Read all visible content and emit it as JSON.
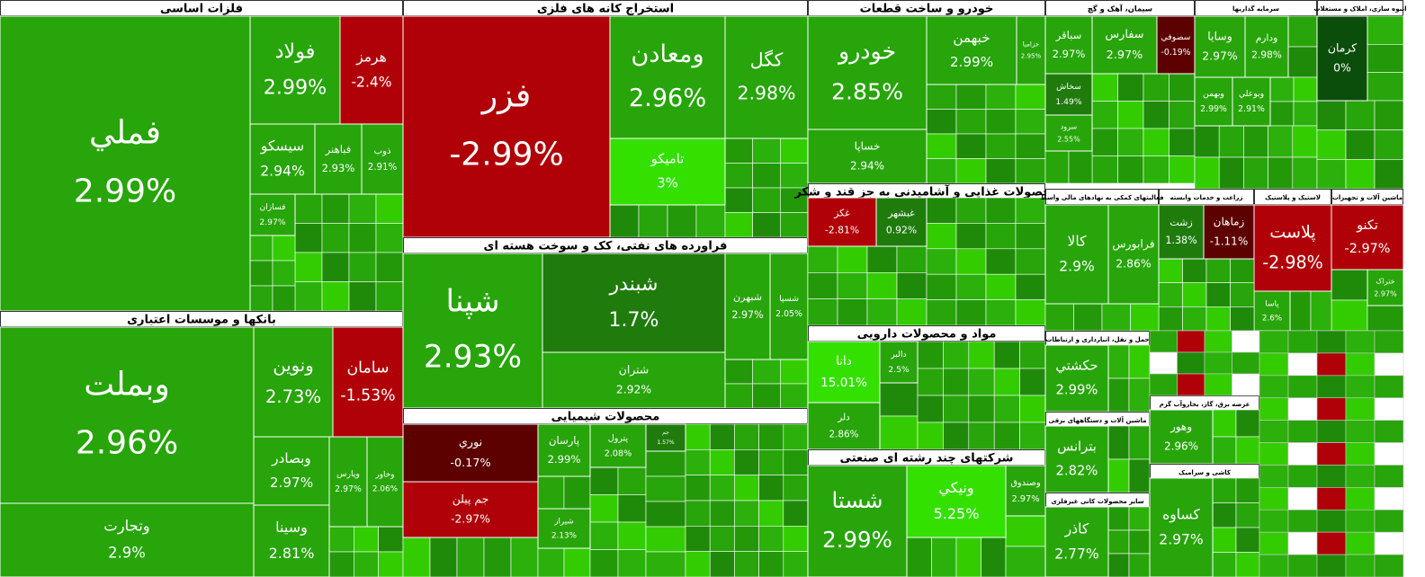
{
  "chart_data": {
    "type": "treemap",
    "sectors": [
      {
        "name": "فلزات اساسی",
        "labels": [
          "فملي",
          "فولاد",
          "هرمز",
          "سيسكو",
          "فباهنر",
          "ذوب",
          "فسازان"
        ],
        "values": [
          2.99,
          2.99,
          -2.4,
          2.94,
          2.93,
          2.91,
          2.97
        ],
        "value_labels": [
          "2.99%",
          "2.99%",
          "-2.4%",
          "2.94%",
          "2.93%",
          "2.91%",
          "2.97%"
        ]
      },
      {
        "name": "بانکها و موسسات اعتباری",
        "labels": [
          "وبملت",
          "وتجارت",
          "ونوين",
          "سامان",
          "وبصادر",
          "وسينا",
          "وپارس",
          "وخاور"
        ],
        "values": [
          2.96,
          2.9,
          2.73,
          -1.53,
          2.97,
          2.81,
          2.97,
          2.06
        ],
        "value_labels": [
          "2.96%",
          "2.9%",
          "2.73%",
          "-1.53%",
          "2.97%",
          "2.81%",
          "2.97%",
          "2.06%"
        ]
      },
      {
        "name": "استخراج کانه های فلزی",
        "labels": [
          "فزر",
          "ومعادن",
          "کگل",
          "تاميکو"
        ],
        "values": [
          -2.99,
          2.96,
          2.98,
          3
        ],
        "value_labels": [
          "-2.99%",
          "2.96%",
          "2.98%",
          "3%"
        ]
      },
      {
        "name": "فراورده های نفتی، کک و سوخت هسته ای",
        "labels": [
          "شپنا",
          "شبندر",
          "شتران",
          "شبهرن",
          "شسپا"
        ],
        "values": [
          2.93,
          1.7,
          2.92,
          2.97,
          2.05
        ],
        "value_labels": [
          "2.93%",
          "1.7%",
          "2.92%",
          "2.97%",
          "2.05%"
        ]
      },
      {
        "name": "محصولات شیمیایی",
        "labels": [
          "نوري",
          "جم پيلن",
          "پارسان",
          "پترول",
          "شيراز",
          "جم"
        ],
        "values": [
          -0.17,
          -2.97,
          2.99,
          2.08,
          2.13,
          1.57
        ],
        "value_labels": [
          "-0.17%",
          "-2.97%",
          "2.99%",
          "2.08%",
          "2.13%",
          "1.57%"
        ]
      },
      {
        "name": "خودرو و ساخت قطعات",
        "labels": [
          "خودرو",
          "خساپا",
          "خبهمن",
          "خزاميا"
        ],
        "values": [
          2.85,
          2.94,
          2.99,
          2.95
        ],
        "value_labels": [
          "2.85%",
          "2.94%",
          "2.99%",
          "2.95%"
        ]
      },
      {
        "name": "محصولات غذایی و آشامیدنی به جز قند و شکر",
        "labels": [
          "غکز",
          "غبشهر"
        ],
        "values": [
          -2.81,
          0.92
        ],
        "value_labels": [
          "-2.81%",
          "0.92%"
        ]
      },
      {
        "name": "مواد و محصولات دارویی",
        "labels": [
          "دانا",
          "دلر",
          "دالبر"
        ],
        "values": [
          15.01,
          2.86,
          2.5
        ],
        "value_labels": [
          "15.01%",
          "2.86%",
          "2.5%"
        ]
      },
      {
        "name": "شرکتهای چند رشته ای صنعتی",
        "labels": [
          "شستا",
          "ونيكي",
          "وصندوق"
        ],
        "values": [
          2.99,
          5.25,
          2.97
        ],
        "value_labels": [
          "2.99%",
          "5.25%",
          "2.97%"
        ]
      },
      {
        "name": "سیمان، آهک و گچ",
        "labels": [
          "سباقر",
          "سفارس",
          "سصوفي",
          "سخاش",
          "سرود"
        ],
        "values": [
          2.97,
          2.97,
          -0.19,
          1.49,
          2.55
        ],
        "value_labels": [
          "2.97%",
          "2.97%",
          "-0.19%",
          "1.49%",
          "2.55%"
        ]
      },
      {
        "name": "سرمایه گذاریها",
        "labels": [
          "وسايا",
          "ودارم",
          "وبهمن",
          "وبوعلي"
        ],
        "values": [
          2.97,
          2.98,
          2.99,
          2.91
        ],
        "value_labels": [
          "2.97%",
          "2.98%",
          "2.99%",
          "2.91%"
        ]
      },
      {
        "name": "انبوه سازی، املاک و مستغلات",
        "labels": [
          "کرمان"
        ],
        "values": [
          0
        ],
        "value_labels": [
          "0%"
        ]
      },
      {
        "name": "ماشین آلات و تجهیزات",
        "labels": [
          "تکنو",
          "ختراک"
        ],
        "values": [
          -2.97,
          2.97
        ],
        "value_labels": [
          "-2.97%",
          "2.97%"
        ]
      },
      {
        "name": "لاستیک و پلاستیک",
        "labels": [
          "پلاست",
          "پاسا"
        ],
        "values": [
          -2.98,
          2.6
        ],
        "value_labels": [
          "-2.98%",
          "2.6%"
        ]
      },
      {
        "name": "زراعت و خدمات وابسته",
        "labels": [
          "زشت",
          "زماهان"
        ],
        "values": [
          1.38,
          -1.11
        ],
        "value_labels": [
          "1.38%",
          "-1.11%"
        ]
      },
      {
        "name": "فعالیتهای کمکی به نهادهای مالی واسط",
        "labels": [
          "کالا",
          "فرابورس"
        ],
        "values": [
          2.9,
          2.86
        ],
        "value_labels": [
          "2.9%",
          "2.86%"
        ]
      },
      {
        "name": "حمل و نقل، انبارداری و ارتباطات",
        "labels": [
          "حکشتي"
        ],
        "values": [
          2.99
        ],
        "value_labels": [
          "2.99%"
        ]
      },
      {
        "name": "ماشین آلات و دستگاههای برقی",
        "labels": [
          "بترانس"
        ],
        "values": [
          2.82
        ],
        "value_labels": [
          "2.82%"
        ]
      },
      {
        "name": "سایر محصولات کانی غیرفلزی",
        "labels": [
          "کاذر"
        ],
        "values": [
          2.77
        ],
        "value_labels": [
          "2.77%"
        ]
      },
      {
        "name": "عرضه برق، گاز، بخاروآب گرم",
        "labels": [
          "وهور"
        ],
        "values": [
          2.96
        ],
        "value_labels": [
          "2.96%"
        ]
      },
      {
        "name": "کاشی و سرامیک",
        "labels": [
          "کساوه"
        ],
        "values": [
          2.97
        ],
        "value_labels": [
          "2.97%"
        ]
      }
    ]
  }
}
